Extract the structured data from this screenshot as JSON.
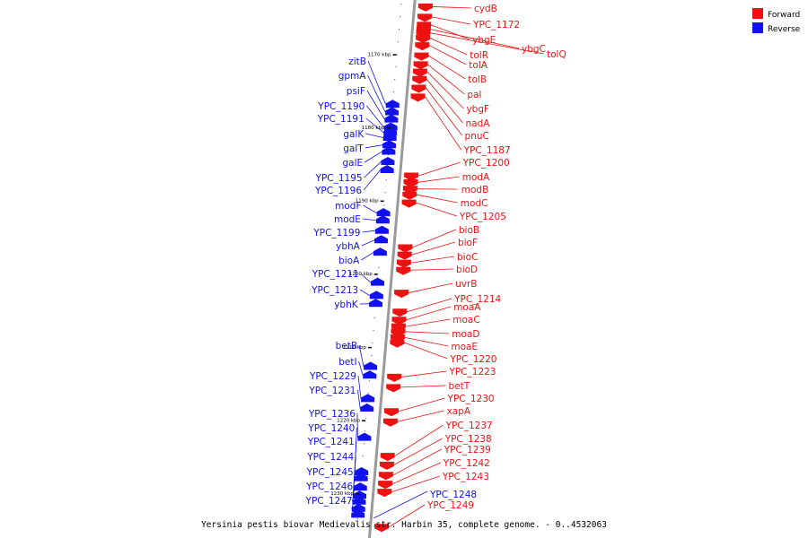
{
  "caption": "Yersinia pestis biovar Medievalis str. Harbin 35, complete genome. - 0..4532063",
  "legend": [
    {
      "label": "Forward",
      "color": "#ee1111"
    },
    {
      "label": "Reverse",
      "color": "#1111ee"
    }
  ],
  "colors": {
    "forward": "#ee1111",
    "reverse": "#1111ee",
    "axis": "#888888"
  },
  "ticks": [
    {
      "label": "1170 kbp",
      "kbp": 1170
    },
    {
      "label": "1180 kbp",
      "kbp": 1180
    },
    {
      "label": "1190 kbp",
      "kbp": 1190
    },
    {
      "label": "1200 kbp",
      "kbp": 1200
    },
    {
      "label": "1210 kbp",
      "kbp": 1210
    },
    {
      "label": "1220 kbp",
      "kbp": 1220
    },
    {
      "label": "1230 kbp",
      "kbp": 1230
    }
  ],
  "reverse_genes": [
    {
      "name": "zitB",
      "kbp": 1176.8
    },
    {
      "name": "gpmA",
      "kbp": 1177.8
    },
    {
      "name": "psiF",
      "kbp": 1178.8
    },
    {
      "name": "YPC_1190",
      "kbp": 1179.9
    },
    {
      "name": "YPC_1191",
      "kbp": 1180.6
    },
    {
      "name": "galK",
      "kbp": 1181.3
    },
    {
      "name": "galT",
      "kbp": 1182.3
    },
    {
      "name": "galE",
      "kbp": 1183.2
    },
    {
      "name": "YPC_1195",
      "kbp": 1184.6
    },
    {
      "name": "YPC_1196",
      "kbp": 1185.7
    },
    {
      "name": "modF",
      "kbp": 1191.6
    },
    {
      "name": "modE",
      "kbp": 1192.6
    },
    {
      "name": "YPC_1199",
      "kbp": 1194.0
    },
    {
      "name": "ybhA",
      "kbp": 1195.3
    },
    {
      "name": "bioA",
      "kbp": 1197.0
    },
    {
      "name": "YPC_1211",
      "kbp": 1201.1
    },
    {
      "name": "YPC_1213",
      "kbp": 1202.9
    },
    {
      "name": "ybhK",
      "kbp": 1204.0
    },
    {
      "name": "betB",
      "kbp": 1212.6
    },
    {
      "name": "betI",
      "kbp": 1213.8
    },
    {
      "name": "YPC_1229",
      "kbp": 1217.0
    },
    {
      "name": "YPC_1231",
      "kbp": 1218.3
    },
    {
      "name": "YPC_1236",
      "kbp": 1222.3
    },
    {
      "name": "YPC_1240",
      "kbp": 1227.0
    },
    {
      "name": "YPC_1241",
      "kbp": 1227.8
    },
    {
      "name": "YPC_1244",
      "kbp": 1229.1
    },
    {
      "name": "YPC_1245",
      "kbp": 1230.2
    },
    {
      "name": "YPC_1246",
      "kbp": 1231.0
    },
    {
      "name": "YPC_1247",
      "kbp": 1232.0
    },
    {
      "name": "YPC_1248",
      "kbp": 1232.8
    }
  ],
  "forward_genes": [
    {
      "name": "cydB",
      "kbp": 1163.4
    },
    {
      "name": "YPC_1172",
      "kbp": 1164.8
    },
    {
      "name": "ybgE",
      "kbp": 1165.9
    },
    {
      "name": "ybgC",
      "kbp": 1166.5
    },
    {
      "name": "tolQ",
      "kbp": 1167.0
    },
    {
      "name": "tolR",
      "kbp": 1167.7
    },
    {
      "name": "tolA",
      "kbp": 1168.7
    },
    {
      "name": "tolB",
      "kbp": 1170.1
    },
    {
      "name": "pal",
      "kbp": 1171.3
    },
    {
      "name": "ybgF",
      "kbp": 1172.3
    },
    {
      "name": "nadA",
      "kbp": 1173.3
    },
    {
      "name": "pnuC",
      "kbp": 1174.5
    },
    {
      "name": "YPC_1187",
      "kbp": 1175.7
    },
    {
      "name": "YPC_1200",
      "kbp": 1186.5
    },
    {
      "name": "modA",
      "kbp": 1187.4
    },
    {
      "name": "modB",
      "kbp": 1188.3
    },
    {
      "name": "modC",
      "kbp": 1189.1
    },
    {
      "name": "YPC_1205",
      "kbp": 1190.2
    },
    {
      "name": "bioB",
      "kbp": 1196.3
    },
    {
      "name": "bioF",
      "kbp": 1197.3
    },
    {
      "name": "bioC",
      "kbp": 1198.4
    },
    {
      "name": "bioD",
      "kbp": 1199.4
    },
    {
      "name": "uvrB",
      "kbp": 1202.5
    },
    {
      "name": "YPC_1214",
      "kbp": 1205.1
    },
    {
      "name": "moaA",
      "kbp": 1206.2
    },
    {
      "name": "moaC",
      "kbp": 1207.1
    },
    {
      "name": "moaD",
      "kbp": 1207.8
    },
    {
      "name": "moaE",
      "kbp": 1208.6
    },
    {
      "name": "YPC_1220",
      "kbp": 1209.3
    },
    {
      "name": "YPC_1223",
      "kbp": 1214.0
    },
    {
      "name": "betT",
      "kbp": 1215.4
    },
    {
      "name": "YPC_1230",
      "kbp": 1218.7
    },
    {
      "name": "xapA",
      "kbp": 1220.1
    },
    {
      "name": "YPC_1237",
      "kbp": 1224.8
    },
    {
      "name": "YPC_1238",
      "kbp": 1226.0
    },
    {
      "name": "YPC_1239",
      "kbp": 1227.4
    },
    {
      "name": "YPC_1242",
      "kbp": 1228.6
    },
    {
      "name": "YPC_1243",
      "kbp": 1229.7
    },
    {
      "name": "YPC_1249",
      "kbp": 1234.5
    }
  ]
}
